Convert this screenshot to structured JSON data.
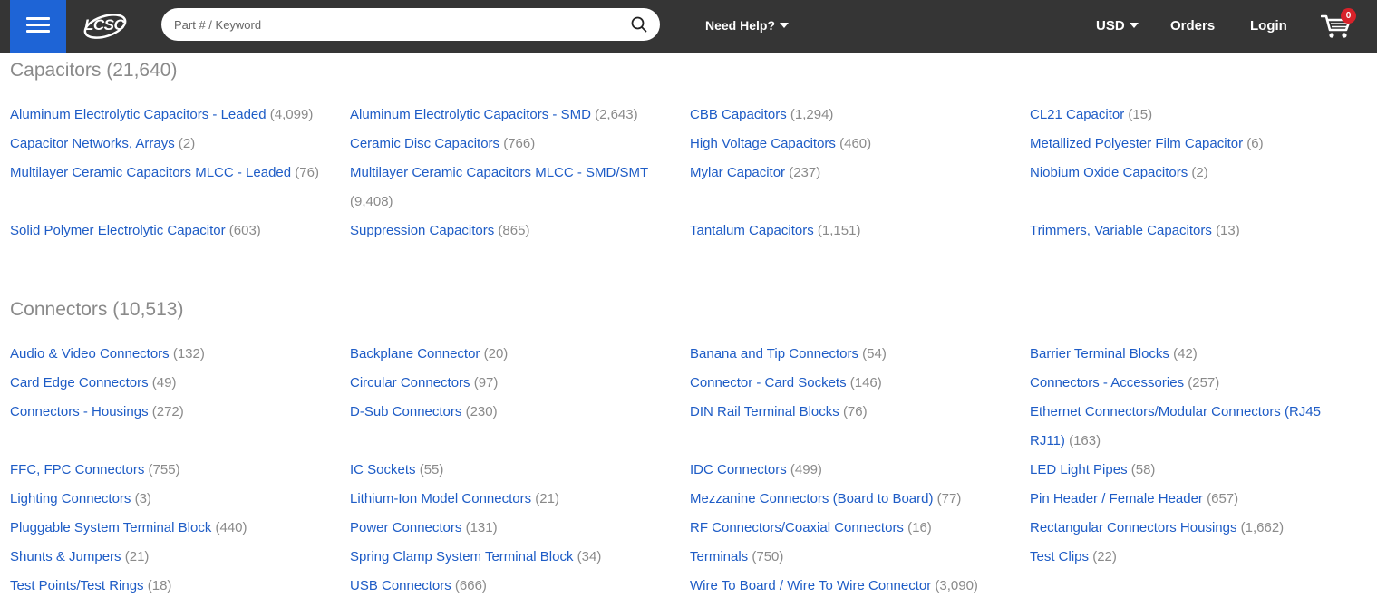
{
  "header": {
    "logo_text": "LCSC",
    "search_placeholder": "Part # / Keyword",
    "need_help": "Need Help?",
    "currency": "USD",
    "orders": "Orders",
    "login": "Login",
    "cart_count": "0",
    "brand_color": "#1e64d6",
    "badge_color": "#d8222a"
  },
  "sections": [
    {
      "title": "Capacitors",
      "count": "(21,640)",
      "items": [
        {
          "name": "Aluminum Electrolytic Capacitors - Leaded",
          "count": "(4,099)"
        },
        {
          "name": "Aluminum Electrolytic Capacitors - SMD",
          "count": "(2,643)"
        },
        {
          "name": "CBB Capacitors",
          "count": "(1,294)"
        },
        {
          "name": "CL21 Capacitor",
          "count": "(15)"
        },
        {
          "name": "Capacitor Networks, Arrays",
          "count": "(2)"
        },
        {
          "name": "Ceramic Disc Capacitors",
          "count": "(766)"
        },
        {
          "name": "High Voltage Capacitors",
          "count": "(460)"
        },
        {
          "name": "Metallized Polyester Film Capacitor",
          "count": "(6)"
        },
        {
          "name": "Multilayer Ceramic Capacitors MLCC - Leaded",
          "count": "(76)"
        },
        {
          "name": "Multilayer Ceramic Capacitors MLCC - SMD/SMT",
          "count": "(9,408)"
        },
        {
          "name": "Mylar Capacitor",
          "count": "(237)"
        },
        {
          "name": "Niobium Oxide Capacitors",
          "count": "(2)"
        },
        {
          "name": "Solid Polymer Electrolytic Capacitor",
          "count": "(603)"
        },
        {
          "name": "Suppression Capacitors",
          "count": "(865)"
        },
        {
          "name": "Tantalum Capacitors",
          "count": "(1,151)"
        },
        {
          "name": "Trimmers, Variable Capacitors",
          "count": "(13)"
        }
      ]
    },
    {
      "title": "Connectors",
      "count": "(10,513)",
      "items": [
        {
          "name": "Audio & Video Connectors",
          "count": "(132)"
        },
        {
          "name": "Backplane Connector",
          "count": "(20)"
        },
        {
          "name": "Banana and Tip Connectors",
          "count": "(54)"
        },
        {
          "name": "Barrier Terminal Blocks",
          "count": "(42)"
        },
        {
          "name": "Card Edge Connectors",
          "count": "(49)"
        },
        {
          "name": "Circular Connectors",
          "count": "(97)"
        },
        {
          "name": "Connector - Card Sockets",
          "count": "(146)"
        },
        {
          "name": "Connectors - Accessories",
          "count": "(257)"
        },
        {
          "name": "Connectors - Housings",
          "count": "(272)"
        },
        {
          "name": "D-Sub Connectors",
          "count": "(230)"
        },
        {
          "name": "DIN Rail Terminal Blocks",
          "count": "(76)"
        },
        {
          "name": "Ethernet Connectors/Modular Connectors (RJ45 RJ11)",
          "count": "(163)"
        },
        {
          "name": "FFC, FPC Connectors",
          "count": "(755)"
        },
        {
          "name": "IC Sockets",
          "count": "(55)"
        },
        {
          "name": "IDC Connectors",
          "count": "(499)"
        },
        {
          "name": "LED Light Pipes",
          "count": "(58)"
        },
        {
          "name": "Lighting Connectors",
          "count": "(3)"
        },
        {
          "name": "Lithium-Ion Model Connectors",
          "count": "(21)"
        },
        {
          "name": "Mezzanine Connectors (Board to Board)",
          "count": "(77)"
        },
        {
          "name": "Pin Header / Female Header",
          "count": "(657)"
        },
        {
          "name": "Pluggable System Terminal Block",
          "count": "(440)"
        },
        {
          "name": "Power Connectors",
          "count": "(131)"
        },
        {
          "name": "RF Connectors/Coaxial Connectors",
          "count": "(16)"
        },
        {
          "name": "Rectangular Connectors Housings",
          "count": "(1,662)"
        },
        {
          "name": "Shunts & Jumpers",
          "count": "(21)"
        },
        {
          "name": "Spring Clamp System Terminal Block",
          "count": "(34)"
        },
        {
          "name": "Terminals",
          "count": "(750)"
        },
        {
          "name": "Test Clips",
          "count": "(22)"
        },
        {
          "name": "Test Points/Test Rings",
          "count": "(18)"
        },
        {
          "name": "USB Connectors",
          "count": "(666)"
        },
        {
          "name": "Wire To Board / Wire To Wire Connector",
          "count": "(3,090)"
        }
      ]
    }
  ]
}
